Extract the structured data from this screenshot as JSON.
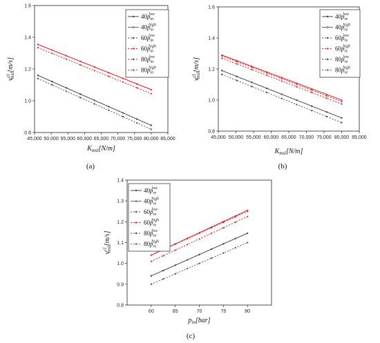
{
  "chart_data": [
    {
      "panel": "(a)",
      "type": "line",
      "xlabel": {
        "main": "K",
        "sub": "msl",
        "unit": "[N/m]"
      },
      "ylabel": {
        "main": "v",
        "sup": "cl",
        "sub": "msl",
        "unit": "[m/s]"
      },
      "xlim": [
        45000,
        85000
      ],
      "ylim": [
        0.8,
        1.6
      ],
      "xticks": [
        45000,
        50000,
        55000,
        60000,
        65000,
        70000,
        75000,
        80000,
        85000
      ],
      "xtick_labels": [
        "45,000",
        "50,000",
        "55,000",
        "60,000",
        "65,000",
        "70,000",
        "75,000",
        "80,000",
        "85,000"
      ],
      "yticks": [
        0.8,
        1.0,
        1.2,
        1.4,
        1.6
      ],
      "ytick_labels": [
        "0.8",
        "1.0",
        "1.2",
        "1.4",
        "1.6"
      ],
      "legend_position": "top-right",
      "series": [
        {
          "name": {
            "prefix": "40",
            "p": "p",
            "sub": "in",
            "sup": "low"
          },
          "color": "#444444",
          "dash": false,
          "x": [
            46000,
            80000
          ],
          "y": [
            1.16,
            0.845
          ]
        },
        {
          "name": {
            "prefix": "40",
            "p": "p",
            "sub": "in",
            "sup": "high"
          },
          "color": "#e03030",
          "dash": false,
          "x": [
            46000,
            80000
          ],
          "y": [
            1.355,
            1.07
          ]
        },
        {
          "name": {
            "prefix": "60",
            "p": "p",
            "sub": "in",
            "sup": "low"
          },
          "color": "#444444",
          "dash": true,
          "x": [
            46000,
            80000
          ],
          "y": [
            1.16,
            0.845
          ]
        },
        {
          "name": {
            "prefix": "60",
            "p": "p",
            "sub": "in",
            "sup": "high"
          },
          "color": "#e03030",
          "dash": true,
          "x": [
            46000,
            80000
          ],
          "y": [
            1.355,
            1.07
          ]
        },
        {
          "name": {
            "prefix": "80",
            "p": "p",
            "sub": "in",
            "sup": "low"
          },
          "color": "#444444",
          "dash": true,
          "x": [
            46000,
            80000
          ],
          "y": [
            1.14,
            0.82
          ]
        },
        {
          "name": {
            "prefix": "80",
            "p": "p",
            "sub": "in",
            "sup": "high"
          },
          "color": "#e03030",
          "dash": true,
          "x": [
            46000,
            80000
          ],
          "y": [
            1.335,
            1.045
          ]
        }
      ]
    },
    {
      "panel": "(b)",
      "type": "line",
      "xlabel": {
        "main": "K",
        "sub": "msl",
        "unit": "[N/m]"
      },
      "ylabel": {
        "main": "v",
        "sup": "cl",
        "sub": "msl",
        "unit": "[m/s]"
      },
      "xlim": [
        45000,
        85000
      ],
      "ylim": [
        0.8,
        1.6
      ],
      "xticks": [
        45000,
        50000,
        55000,
        60000,
        65000,
        70000,
        75000,
        80000,
        85000
      ],
      "xtick_labels": [
        "45,000",
        "50,000",
        "55,000",
        "60,000",
        "65,000",
        "70,000",
        "75,000",
        "80,000",
        "85,000"
      ],
      "yticks": [
        0.8,
        1.0,
        1.2,
        1.4,
        1.6
      ],
      "ytick_labels": [
        "0.8",
        "1.0",
        "1.2",
        "1.4",
        "1.6"
      ],
      "legend_position": "top-right",
      "series": [
        {
          "name": {
            "prefix": "40",
            "p": "p",
            "sub": "re",
            "sup": "low"
          },
          "color": "#444444",
          "dash": false,
          "x": [
            46000,
            80000
          ],
          "y": [
            1.19,
            0.885
          ]
        },
        {
          "name": {
            "prefix": "40",
            "p": "p",
            "sub": "re",
            "sup": "high"
          },
          "color": "#e03030",
          "dash": false,
          "x": [
            46000,
            80000
          ],
          "y": [
            1.29,
            1.0
          ]
        },
        {
          "name": {
            "prefix": "60",
            "p": "p",
            "sub": "re",
            "sup": "low"
          },
          "color": "#444444",
          "dash": true,
          "x": [
            46000,
            80000
          ],
          "y": [
            1.19,
            0.885
          ]
        },
        {
          "name": {
            "prefix": "60",
            "p": "p",
            "sub": "re",
            "sup": "high"
          },
          "color": "#e03030",
          "dash": true,
          "x": [
            46000,
            80000
          ],
          "y": [
            1.285,
            0.99
          ]
        },
        {
          "name": {
            "prefix": "80",
            "p": "p",
            "sub": "re",
            "sup": "low"
          },
          "color": "#444444",
          "dash": true,
          "x": [
            46000,
            80000
          ],
          "y": [
            1.165,
            0.855
          ]
        },
        {
          "name": {
            "prefix": "80",
            "p": "p",
            "sub": "re",
            "sup": "high"
          },
          "color": "#e03030",
          "dash": true,
          "x": [
            46000,
            80000
          ],
          "y": [
            1.27,
            0.975
          ]
        }
      ]
    },
    {
      "panel": "(c)",
      "type": "line",
      "xlabel": {
        "main": "p",
        "sub": "in",
        "unit": "[bar]"
      },
      "ylabel": {
        "main": "v",
        "sup": "cl",
        "sub": "msl",
        "unit": "[m/s]"
      },
      "xlim": [
        55,
        85
      ],
      "ylim": [
        0.8,
        1.4
      ],
      "xticks": [
        60,
        65,
        70,
        75,
        80
      ],
      "xtick_labels": [
        "60",
        "65",
        "70",
        "75",
        "80"
      ],
      "yticks": [
        0.8,
        0.9,
        1.0,
        1.1,
        1.2,
        1.3,
        1.4
      ],
      "ytick_labels": [
        "0.8",
        "0.9",
        "1.0",
        "1.1",
        "1.2",
        "1.3",
        "1.4"
      ],
      "legend_position": "top-left",
      "series": [
        {
          "name": {
            "prefix": "40",
            "p": "p",
            "sub": "re",
            "sup": "low"
          },
          "color": "#444444",
          "dash": false,
          "x": [
            60,
            80
          ],
          "y": [
            0.94,
            1.145
          ]
        },
        {
          "name": {
            "prefix": "40",
            "p": "p",
            "sub": "re",
            "sup": "high"
          },
          "color": "#e03030",
          "dash": false,
          "x": [
            60,
            80
          ],
          "y": [
            1.04,
            1.255
          ]
        },
        {
          "name": {
            "prefix": "60",
            "p": "p",
            "sub": "re",
            "sup": "low"
          },
          "color": "#444444",
          "dash": true,
          "x": [
            60,
            80
          ],
          "y": [
            0.94,
            1.145
          ]
        },
        {
          "name": {
            "prefix": "60",
            "p": "p",
            "sub": "re",
            "sup": "high"
          },
          "color": "#e03030",
          "dash": true,
          "x": [
            60,
            80
          ],
          "y": [
            1.04,
            1.25
          ]
        },
        {
          "name": {
            "prefix": "80",
            "p": "p",
            "sub": "re",
            "sup": "low"
          },
          "color": "#444444",
          "dash": true,
          "x": [
            60,
            80
          ],
          "y": [
            0.9,
            1.1
          ]
        },
        {
          "name": {
            "prefix": "80",
            "p": "p",
            "sub": "re",
            "sup": "high"
          },
          "color": "#e03030",
          "dash": true,
          "x": [
            60,
            80
          ],
          "y": [
            1.01,
            1.225
          ]
        }
      ]
    }
  ]
}
